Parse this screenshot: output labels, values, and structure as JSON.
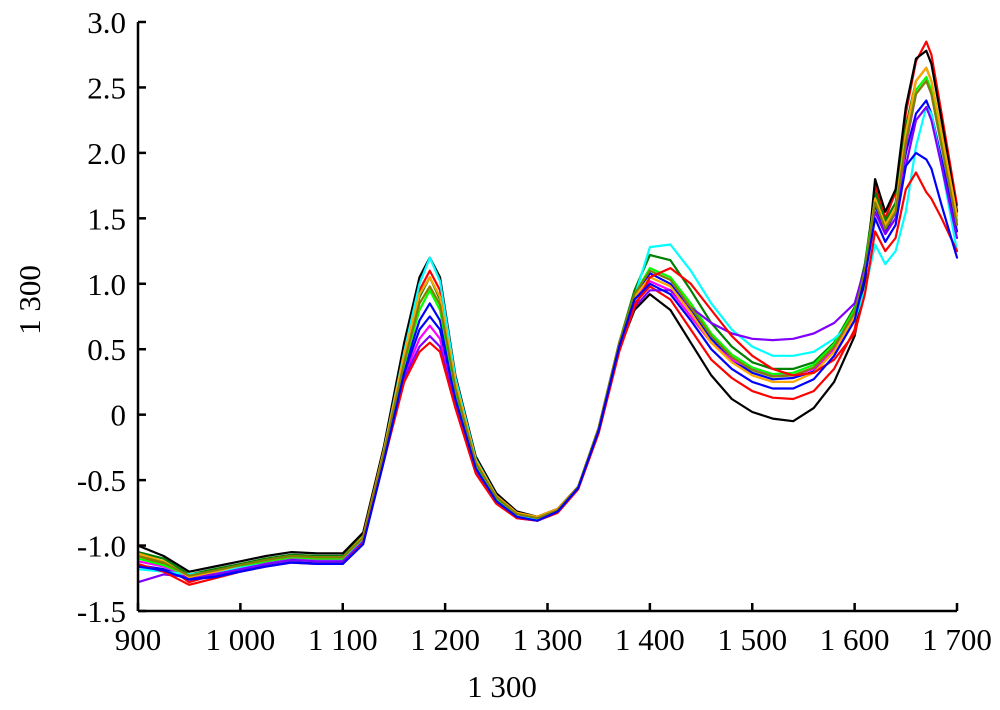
{
  "chart_data": {
    "type": "line",
    "title": "",
    "xlabel": "1 300",
    "ylabel": "1 300",
    "xlim": [
      900,
      1700
    ],
    "ylim": [
      -1.5,
      3.0
    ],
    "grid": false,
    "x_ticks": [
      900,
      1000,
      1100,
      1200,
      1300,
      1400,
      1500,
      1600,
      1700
    ],
    "x_tick_labels": [
      "900",
      "1 000",
      "1 100",
      "1 200",
      "1 300",
      "1 400",
      "1 500",
      "1 600",
      "1 700"
    ],
    "y_ticks": [
      -1.5,
      -1.0,
      -0.5,
      0,
      0.5,
      1.0,
      1.5,
      2.0,
      2.5,
      3.0
    ],
    "y_tick_labels": [
      "-1.5",
      "-1.0",
      "-0.5",
      "0",
      "0.5",
      "1.0",
      "1.5",
      "2.0",
      "2.5",
      "3.0"
    ],
    "x": [
      900,
      925,
      950,
      975,
      1000,
      1025,
      1050,
      1075,
      1100,
      1120,
      1140,
      1160,
      1175,
      1185,
      1195,
      1210,
      1230,
      1250,
      1270,
      1290,
      1310,
      1330,
      1350,
      1370,
      1385,
      1400,
      1420,
      1440,
      1460,
      1480,
      1500,
      1520,
      1540,
      1560,
      1580,
      1600,
      1610,
      1620,
      1630,
      1640,
      1650,
      1660,
      1670,
      1675,
      1685,
      1700
    ],
    "series": [
      {
        "color": "#ff0000",
        "values": [
          -1.08,
          -1.14,
          -1.28,
          -1.22,
          -1.17,
          -1.12,
          -1.09,
          -1.1,
          -1.1,
          -0.95,
          -0.3,
          0.45,
          0.95,
          1.1,
          0.95,
          0.25,
          -0.35,
          -0.62,
          -0.75,
          -0.78,
          -0.72,
          -0.55,
          -0.1,
          0.55,
          0.85,
          0.98,
          0.88,
          0.65,
          0.42,
          0.28,
          0.18,
          0.13,
          0.12,
          0.18,
          0.35,
          0.65,
          1.05,
          1.75,
          1.5,
          1.7,
          2.3,
          2.7,
          2.85,
          2.75,
          2.3,
          1.6
        ]
      },
      {
        "color": "#0000ff",
        "values": [
          -1.15,
          -1.18,
          -1.25,
          -1.23,
          -1.19,
          -1.15,
          -1.12,
          -1.13,
          -1.13,
          -0.98,
          -0.35,
          0.35,
          0.72,
          0.85,
          0.72,
          0.15,
          -0.4,
          -0.65,
          -0.78,
          -0.8,
          -0.73,
          -0.55,
          -0.1,
          0.55,
          0.9,
          1.08,
          1.0,
          0.8,
          0.58,
          0.42,
          0.32,
          0.27,
          0.28,
          0.33,
          0.5,
          0.78,
          1.15,
          1.6,
          1.4,
          1.55,
          2.0,
          2.3,
          2.4,
          2.3,
          1.95,
          1.4
        ]
      },
      {
        "color": "#008000",
        "values": [
          -1.05,
          -1.1,
          -1.22,
          -1.18,
          -1.14,
          -1.1,
          -1.07,
          -1.08,
          -1.08,
          -0.92,
          -0.3,
          0.42,
          0.9,
          1.05,
          0.88,
          0.22,
          -0.36,
          -0.62,
          -0.75,
          -0.78,
          -0.72,
          -0.55,
          -0.1,
          0.55,
          0.95,
          1.22,
          1.18,
          0.95,
          0.7,
          0.52,
          0.4,
          0.35,
          0.35,
          0.4,
          0.55,
          0.82,
          1.15,
          1.7,
          1.48,
          1.62,
          2.2,
          2.55,
          2.65,
          2.55,
          2.15,
          1.55
        ]
      },
      {
        "color": "#000000",
        "values": [
          -1.0,
          -1.08,
          -1.2,
          -1.16,
          -1.12,
          -1.08,
          -1.05,
          -1.06,
          -1.06,
          -0.9,
          -0.25,
          0.55,
          1.05,
          1.2,
          1.05,
          0.3,
          -0.32,
          -0.6,
          -0.74,
          -0.78,
          -0.72,
          -0.55,
          -0.12,
          0.5,
          0.8,
          0.92,
          0.8,
          0.55,
          0.3,
          0.12,
          0.02,
          -0.03,
          -0.05,
          0.05,
          0.25,
          0.6,
          1.0,
          1.8,
          1.55,
          1.72,
          2.35,
          2.72,
          2.78,
          2.68,
          2.25,
          1.55
        ]
      },
      {
        "color": "#ff00ff",
        "values": [
          -1.12,
          -1.16,
          -1.24,
          -1.21,
          -1.17,
          -1.13,
          -1.1,
          -1.11,
          -1.11,
          -0.96,
          -0.32,
          0.3,
          0.58,
          0.68,
          0.58,
          0.1,
          -0.42,
          -0.66,
          -0.78,
          -0.8,
          -0.74,
          -0.56,
          -0.12,
          0.52,
          0.88,
          1.02,
          0.95,
          0.75,
          0.55,
          0.42,
          0.35,
          0.3,
          0.3,
          0.35,
          0.5,
          0.78,
          1.1,
          1.55,
          1.38,
          1.5,
          2.05,
          2.45,
          2.55,
          2.45,
          2.05,
          1.45
        ]
      },
      {
        "color": "#00ff00",
        "values": [
          -1.1,
          -1.15,
          -1.23,
          -1.2,
          -1.16,
          -1.12,
          -1.09,
          -1.1,
          -1.1,
          -0.94,
          -0.3,
          0.38,
          0.8,
          0.95,
          0.8,
          0.18,
          -0.38,
          -0.64,
          -0.76,
          -0.79,
          -0.73,
          -0.55,
          -0.11,
          0.55,
          0.92,
          1.12,
          1.05,
          0.85,
          0.62,
          0.46,
          0.36,
          0.31,
          0.32,
          0.38,
          0.54,
          0.8,
          1.12,
          1.65,
          1.45,
          1.58,
          2.1,
          2.48,
          2.58,
          2.48,
          2.08,
          1.48
        ]
      },
      {
        "color": "#00ffff",
        "values": [
          -1.18,
          -1.2,
          -1.22,
          -1.2,
          -1.17,
          -1.14,
          -1.11,
          -1.12,
          -1.12,
          -0.95,
          -0.28,
          0.48,
          1.0,
          1.2,
          1.02,
          0.28,
          -0.34,
          -0.62,
          -0.76,
          -0.8,
          -0.74,
          -0.56,
          -0.12,
          0.52,
          0.9,
          1.28,
          1.3,
          1.1,
          0.85,
          0.65,
          0.52,
          0.45,
          0.45,
          0.48,
          0.58,
          0.72,
          0.95,
          1.3,
          1.15,
          1.25,
          1.55,
          2.05,
          2.35,
          2.3,
          1.9,
          1.25
        ]
      },
      {
        "color": "#8000ff",
        "values": [
          -1.28,
          -1.22,
          -1.24,
          -1.22,
          -1.18,
          -1.14,
          -1.11,
          -1.12,
          -1.12,
          -0.97,
          -0.34,
          0.28,
          0.52,
          0.6,
          0.52,
          0.08,
          -0.44,
          -0.67,
          -0.79,
          -0.81,
          -0.74,
          -0.56,
          -0.12,
          0.5,
          0.82,
          0.95,
          0.95,
          0.82,
          0.7,
          0.62,
          0.58,
          0.57,
          0.58,
          0.62,
          0.7,
          0.85,
          1.12,
          1.55,
          1.38,
          1.5,
          1.9,
          2.25,
          2.35,
          2.25,
          1.9,
          1.35
        ]
      },
      {
        "color": "#ffa500",
        "values": [
          -1.06,
          -1.12,
          -1.24,
          -1.2,
          -1.15,
          -1.11,
          -1.08,
          -1.09,
          -1.09,
          -0.93,
          -0.28,
          0.46,
          0.92,
          1.05,
          0.9,
          0.24,
          -0.35,
          -0.62,
          -0.75,
          -0.78,
          -0.72,
          -0.55,
          -0.1,
          0.55,
          0.9,
          1.05,
          0.98,
          0.78,
          0.55,
          0.4,
          0.3,
          0.25,
          0.25,
          0.32,
          0.48,
          0.75,
          1.08,
          1.65,
          1.45,
          1.58,
          2.15,
          2.55,
          2.65,
          2.55,
          2.15,
          1.52
        ]
      },
      {
        "color": "#808000",
        "values": [
          -1.08,
          -1.13,
          -1.23,
          -1.19,
          -1.15,
          -1.11,
          -1.08,
          -1.09,
          -1.09,
          -0.94,
          -0.3,
          0.4,
          0.85,
          0.98,
          0.84,
          0.2,
          -0.37,
          -0.63,
          -0.76,
          -0.79,
          -0.73,
          -0.55,
          -0.1,
          0.55,
          0.92,
          1.1,
          1.03,
          0.82,
          0.6,
          0.44,
          0.34,
          0.29,
          0.3,
          0.36,
          0.52,
          0.78,
          1.1,
          1.62,
          1.42,
          1.55,
          2.08,
          2.45,
          2.55,
          2.45,
          2.05,
          1.45
        ]
      },
      {
        "color": "#ff0000",
        "values": [
          -1.14,
          -1.2,
          -1.3,
          -1.25,
          -1.2,
          -1.16,
          -1.13,
          -1.14,
          -1.14,
          -0.98,
          -0.36,
          0.25,
          0.48,
          0.55,
          0.48,
          0.05,
          -0.45,
          -0.68,
          -0.79,
          -0.81,
          -0.75,
          -0.57,
          -0.14,
          0.48,
          0.82,
          1.05,
          1.12,
          1.0,
          0.8,
          0.6,
          0.45,
          0.35,
          0.3,
          0.32,
          0.42,
          0.62,
          0.92,
          1.4,
          1.25,
          1.35,
          1.72,
          1.85,
          1.7,
          1.65,
          1.5,
          1.25
        ]
      },
      {
        "color": "#0000ff",
        "values": [
          -1.16,
          -1.19,
          -1.26,
          -1.24,
          -1.2,
          -1.16,
          -1.13,
          -1.14,
          -1.14,
          -0.99,
          -0.36,
          0.32,
          0.65,
          0.75,
          0.65,
          0.12,
          -0.41,
          -0.66,
          -0.78,
          -0.81,
          -0.74,
          -0.56,
          -0.12,
          0.52,
          0.88,
          1.0,
          0.92,
          0.72,
          0.5,
          0.35,
          0.25,
          0.2,
          0.2,
          0.27,
          0.45,
          0.72,
          1.05,
          1.5,
          1.32,
          1.45,
          1.9,
          2.0,
          1.95,
          1.88,
          1.6,
          1.2
        ]
      }
    ]
  }
}
